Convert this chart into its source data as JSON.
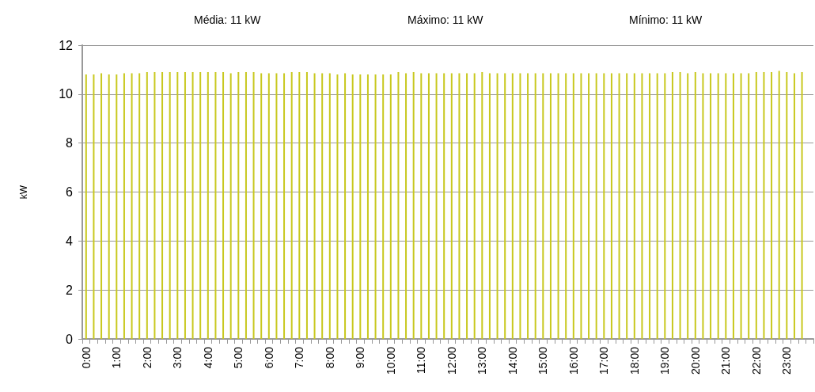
{
  "chart_data": {
    "type": "bar",
    "ylabel": "kW",
    "annotations": [
      "Média: 11 kW",
      "Máximo: 11 kW",
      "Mínimo: 11 kW"
    ],
    "categories": [
      "0:00",
      null,
      null,
      null,
      "1:00",
      null,
      null,
      null,
      "2:00",
      null,
      null,
      null,
      "3:00",
      null,
      null,
      null,
      "4:00",
      null,
      null,
      null,
      "5:00",
      null,
      null,
      null,
      "6:00",
      null,
      null,
      null,
      "7:00",
      null,
      null,
      null,
      "8:00",
      null,
      null,
      null,
      "9:00",
      null,
      null,
      null,
      "10:00",
      null,
      null,
      null,
      "11:00",
      null,
      null,
      null,
      "12:00",
      null,
      null,
      null,
      "13:00",
      null,
      null,
      null,
      "14:00",
      null,
      null,
      null,
      "15:00",
      null,
      null,
      null,
      "16:00",
      null,
      null,
      null,
      "17:00",
      null,
      null,
      null,
      "18:00",
      null,
      null,
      null,
      "19:00",
      null,
      null,
      null,
      "20:00",
      null,
      null,
      null,
      "21:00",
      null,
      null,
      null,
      "22:00",
      null,
      null,
      null,
      "23:00",
      null,
      null,
      null
    ],
    "values": [
      10.8,
      10.8,
      10.85,
      10.8,
      10.8,
      10.85,
      10.85,
      10.85,
      10.9,
      10.9,
      10.9,
      10.9,
      10.9,
      10.9,
      10.9,
      10.9,
      10.9,
      10.9,
      10.9,
      10.85,
      10.9,
      10.9,
      10.9,
      10.85,
      10.85,
      10.85,
      10.85,
      10.9,
      10.9,
      10.9,
      10.85,
      10.85,
      10.85,
      10.8,
      10.85,
      10.8,
      10.8,
      10.8,
      10.8,
      10.8,
      10.8,
      10.9,
      10.85,
      10.9,
      10.85,
      10.85,
      10.85,
      10.85,
      10.85,
      10.85,
      10.85,
      10.85,
      10.9,
      10.85,
      10.85,
      10.85,
      10.85,
      10.85,
      10.85,
      10.85,
      10.85,
      10.85,
      10.85,
      10.85,
      10.85,
      10.85,
      10.85,
      10.85,
      10.85,
      10.85,
      10.85,
      10.85,
      10.85,
      10.85,
      10.85,
      10.85,
      10.85,
      10.9,
      10.9,
      10.85,
      10.9,
      10.85,
      10.85,
      10.85,
      10.85,
      10.85,
      10.85,
      10.85,
      10.9,
      10.9,
      10.9,
      10.95,
      10.9,
      10.85,
      10.9,
      null
    ],
    "color": "#c8c81e",
    "ylim": [
      0,
      12
    ],
    "yticks": [
      0,
      2,
      4,
      6,
      8,
      10,
      12
    ],
    "grid": "y"
  }
}
